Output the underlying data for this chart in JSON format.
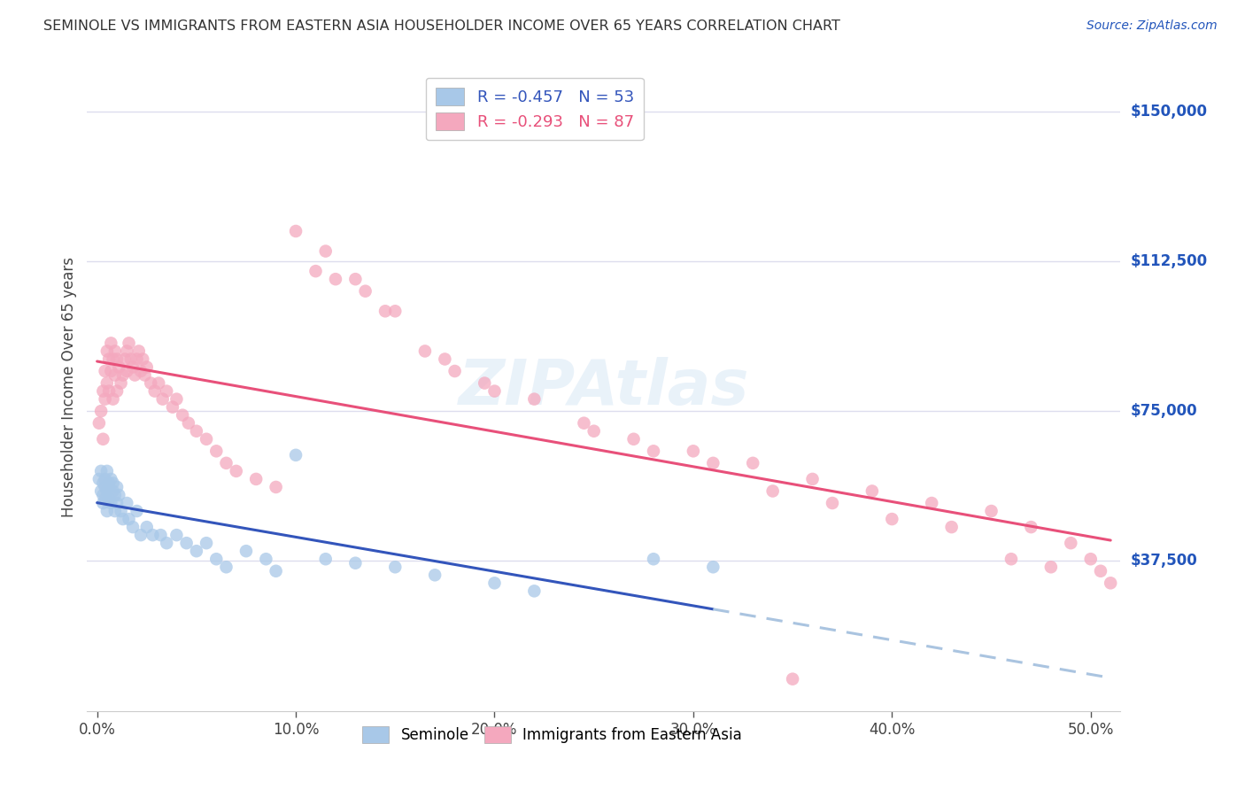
{
  "title": "SEMINOLE VS IMMIGRANTS FROM EASTERN ASIA HOUSEHOLDER INCOME OVER 65 YEARS CORRELATION CHART",
  "source": "Source: ZipAtlas.com",
  "ylabel": "Householder Income Over 65 years",
  "xlabel_ticks": [
    "0.0%",
    "10.0%",
    "20.0%",
    "30.0%",
    "40.0%",
    "50.0%"
  ],
  "xlabel_vals": [
    0.0,
    0.1,
    0.2,
    0.3,
    0.4,
    0.5
  ],
  "ylabel_ticks": [
    "$37,500",
    "$75,000",
    "$112,500",
    "$150,000"
  ],
  "ylabel_vals": [
    37500,
    75000,
    112500,
    150000
  ],
  "ylim_min": 0,
  "ylim_max": 162000,
  "xlim_min": -0.005,
  "xlim_max": 0.515,
  "blue_color": "#a8c8e8",
  "pink_color": "#f4a8be",
  "blue_line_color": "#3355bb",
  "pink_line_color": "#e8507a",
  "blue_dashed_color": "#aac4e0",
  "bg_color": "#ffffff",
  "grid_color": "#ddddee",
  "axis_label_color": "#2255bb",
  "title_color": "#333333",
  "watermark": "ZIPAtlas",
  "legend_R_blue": "R = -0.457",
  "legend_N_blue": "N = 53",
  "legend_R_pink": "R = -0.293",
  "legend_N_pink": "N = 87",
  "legend_series_blue": "Seminole",
  "legend_series_pink": "Immigrants from Eastern Asia",
  "seminole_x": [
    0.001,
    0.002,
    0.002,
    0.003,
    0.003,
    0.003,
    0.004,
    0.004,
    0.004,
    0.005,
    0.005,
    0.005,
    0.006,
    0.006,
    0.006,
    0.007,
    0.007,
    0.008,
    0.008,
    0.009,
    0.009,
    0.01,
    0.01,
    0.011,
    0.012,
    0.013,
    0.015,
    0.016,
    0.018,
    0.02,
    0.022,
    0.025,
    0.028,
    0.032,
    0.035,
    0.04,
    0.045,
    0.05,
    0.055,
    0.06,
    0.065,
    0.075,
    0.085,
    0.09,
    0.1,
    0.115,
    0.13,
    0.15,
    0.17,
    0.2,
    0.22,
    0.28,
    0.31
  ],
  "seminole_y": [
    58000,
    60000,
    55000,
    57000,
    54000,
    52000,
    56000,
    58000,
    53000,
    60000,
    55000,
    50000,
    57000,
    53000,
    56000,
    58000,
    52000,
    55000,
    57000,
    54000,
    50000,
    56000,
    52000,
    54000,
    50000,
    48000,
    52000,
    48000,
    46000,
    50000,
    44000,
    46000,
    44000,
    44000,
    42000,
    44000,
    42000,
    40000,
    42000,
    38000,
    36000,
    40000,
    38000,
    35000,
    64000,
    38000,
    37000,
    36000,
    34000,
    32000,
    30000,
    38000,
    36000
  ],
  "eastern_asia_x": [
    0.001,
    0.002,
    0.003,
    0.003,
    0.004,
    0.004,
    0.005,
    0.005,
    0.006,
    0.006,
    0.007,
    0.007,
    0.008,
    0.008,
    0.009,
    0.009,
    0.01,
    0.01,
    0.011,
    0.012,
    0.013,
    0.014,
    0.015,
    0.015,
    0.016,
    0.017,
    0.018,
    0.019,
    0.02,
    0.021,
    0.022,
    0.023,
    0.024,
    0.025,
    0.027,
    0.029,
    0.031,
    0.033,
    0.035,
    0.038,
    0.04,
    0.043,
    0.046,
    0.05,
    0.055,
    0.06,
    0.065,
    0.07,
    0.08,
    0.09,
    0.1,
    0.11,
    0.12,
    0.135,
    0.15,
    0.165,
    0.18,
    0.2,
    0.22,
    0.245,
    0.27,
    0.3,
    0.33,
    0.36,
    0.39,
    0.42,
    0.45,
    0.47,
    0.49,
    0.5,
    0.115,
    0.13,
    0.145,
    0.175,
    0.195,
    0.25,
    0.28,
    0.31,
    0.34,
    0.37,
    0.4,
    0.43,
    0.46,
    0.48,
    0.505,
    0.51,
    0.35
  ],
  "eastern_asia_y": [
    72000,
    75000,
    80000,
    68000,
    85000,
    78000,
    90000,
    82000,
    88000,
    80000,
    92000,
    85000,
    88000,
    78000,
    90000,
    84000,
    88000,
    80000,
    86000,
    82000,
    84000,
    88000,
    90000,
    85000,
    92000,
    88000,
    86000,
    84000,
    88000,
    90000,
    85000,
    88000,
    84000,
    86000,
    82000,
    80000,
    82000,
    78000,
    80000,
    76000,
    78000,
    74000,
    72000,
    70000,
    68000,
    65000,
    62000,
    60000,
    58000,
    56000,
    120000,
    110000,
    108000,
    105000,
    100000,
    90000,
    85000,
    80000,
    78000,
    72000,
    68000,
    65000,
    62000,
    58000,
    55000,
    52000,
    50000,
    46000,
    42000,
    38000,
    115000,
    108000,
    100000,
    88000,
    82000,
    70000,
    65000,
    62000,
    55000,
    52000,
    48000,
    46000,
    38000,
    36000,
    35000,
    32000,
    8000
  ]
}
